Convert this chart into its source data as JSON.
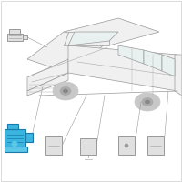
{
  "background_color": "#ffffff",
  "vehicle_body_color": "#f0f0f0",
  "vehicle_outline_color": "#999999",
  "vehicle_line_color": "#aaaaaa",
  "window_color": "#e8f0f0",
  "highlight_color": "#3ab5df",
  "highlight_dark": "#1a7aab",
  "highlight_mid": "#5cc8e8",
  "parts_fill": "#e0e0e0",
  "parts_outline": "#999999",
  "leader_color": "#999999",
  "border_color": "#cccccc",
  "fig_width": 2.0,
  "fig_height": 2.0,
  "dpi": 100
}
